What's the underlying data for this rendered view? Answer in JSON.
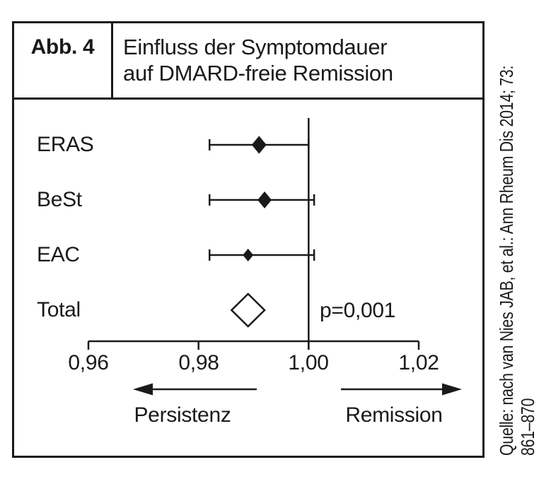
{
  "figure": {
    "label": "Abb. 4",
    "title_line1": "Einfluss der Symptomdauer",
    "title_line2": "auf DMARD-freie Remission",
    "source_line1": "Quelle: nach van Nies JAB, et al.: Ann Rheum Dis 2014; 73:",
    "source_line2": "861–870"
  },
  "colors": {
    "ink": "#1a1a1a",
    "background": "#ffffff"
  },
  "chart_data": {
    "type": "forest",
    "title": "Einfluss der Symptomdauer auf DMARD-freie Remission",
    "x_axis": {
      "ticks": [
        0.96,
        0.98,
        1.0,
        1.02
      ],
      "tick_labels": [
        "0,96",
        "0,98",
        "1,00",
        "1,02"
      ],
      "range": [
        0.96,
        1.02
      ]
    },
    "reference_line": 1.0,
    "studies": [
      {
        "label": "ERAS",
        "estimate": 0.991,
        "ci_low": 0.982,
        "ci_high": 1.0,
        "marker": "filled-diamond",
        "marker_size": 21
      },
      {
        "label": "BeSt",
        "estimate": 0.992,
        "ci_low": 0.982,
        "ci_high": 1.001,
        "marker": "filled-diamond",
        "marker_size": 20
      },
      {
        "label": "EAC",
        "estimate": 0.989,
        "ci_low": 0.982,
        "ci_high": 1.001,
        "marker": "filled-diamond",
        "marker_size": 15
      },
      {
        "label": "Total",
        "estimate": 0.989,
        "ci_low": 0.986,
        "ci_high": 0.992,
        "marker": "open-diamond"
      }
    ],
    "annotation": "p=0,001",
    "direction_labels": {
      "left": "Persistenz",
      "right": "Remission"
    }
  }
}
